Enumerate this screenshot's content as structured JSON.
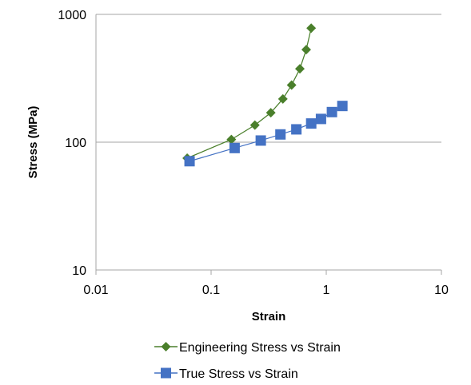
{
  "chart_data": {
    "type": "scatter",
    "title": "",
    "xlabel": "Strain",
    "ylabel": "Stress (MPa)",
    "x_scale": "log",
    "y_scale": "log",
    "xlim": [
      0.01,
      10
    ],
    "ylim": [
      10,
      1000
    ],
    "x_ticks": [
      0.01,
      0.1,
      1,
      10
    ],
    "x_tick_labels": [
      "0.01",
      "0.1",
      "1",
      "10"
    ],
    "y_ticks": [
      10,
      100,
      1000
    ],
    "y_tick_labels": [
      "10",
      "100",
      "1000"
    ],
    "grid": "horizontal major",
    "legend_position": "bottom",
    "series": [
      {
        "name": "Engineering Stress vs Strain",
        "marker": "diamond",
        "color": "#4a7f2b",
        "x": [
          0.062,
          0.15,
          0.24,
          0.33,
          0.42,
          0.5,
          0.59,
          0.67,
          0.74
        ],
        "y": [
          75,
          105,
          136,
          170,
          218,
          280,
          375,
          530,
          780
        ]
      },
      {
        "name": "True Stress vs Strain",
        "marker": "square",
        "color": "#4472c4",
        "x": [
          0.065,
          0.16,
          0.27,
          0.4,
          0.55,
          0.74,
          0.9,
          1.12,
          1.38
        ],
        "y": [
          71,
          90,
          103,
          115,
          126,
          140,
          152,
          172,
          192
        ]
      }
    ]
  }
}
